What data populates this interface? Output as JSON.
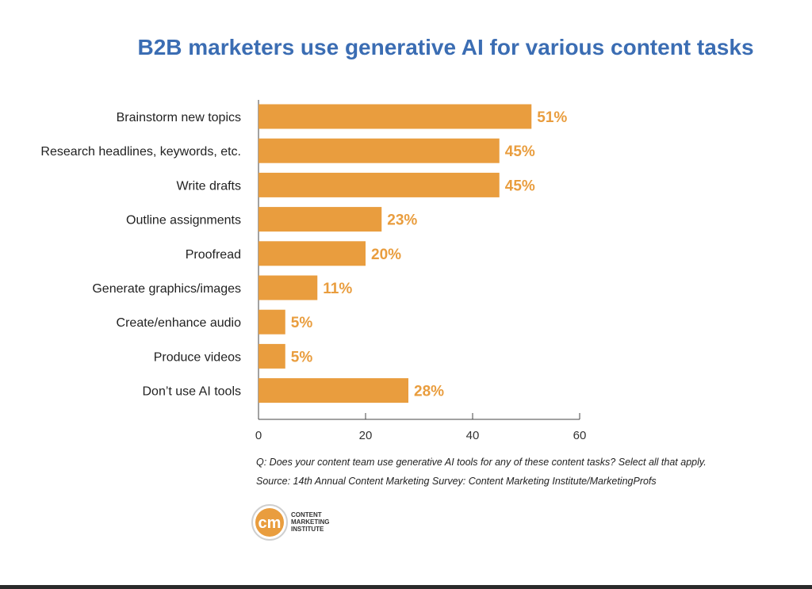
{
  "chart_data": {
    "type": "bar",
    "orientation": "horizontal",
    "title": "B2B marketers use generative AI for various content tasks",
    "categories": [
      "Brainstorm new topics",
      "Research headlines, keywords, etc.",
      "Write drafts",
      "Outline assignments",
      "Proofread",
      "Generate graphics/images",
      "Create/enhance audio",
      "Produce videos",
      "Don’t use AI tools"
    ],
    "values": [
      51,
      45,
      45,
      23,
      20,
      11,
      5,
      5,
      28
    ],
    "value_labels": [
      "51%",
      "45%",
      "45%",
      "23%",
      "20%",
      "11%",
      "5%",
      "5%",
      "28%"
    ],
    "xlim": [
      0,
      60
    ],
    "x_ticks": [
      0,
      20,
      40,
      60
    ],
    "x_tick_labels": [
      "0",
      "20",
      "40",
      "60"
    ],
    "xlabel": "",
    "ylabel": "",
    "grid": false,
    "bar_color": "#e99d3e",
    "value_label_color": "#e99d3e"
  },
  "notes": {
    "question": "Q: Does your content team use generative AI tools for any of these content tasks? Select all that apply.",
    "source": "Source: 14th Annual Content Marketing Survey: Content Marketing Institute/MarketingProfs"
  },
  "logo": {
    "mark": "cm",
    "line1": "CONTENT",
    "line2": "MARKETING",
    "line3": "INSTITUTE",
    "ring_color": "#e99d3e"
  },
  "colors": {
    "title": "#3b6db3",
    "axis": "#444444"
  }
}
